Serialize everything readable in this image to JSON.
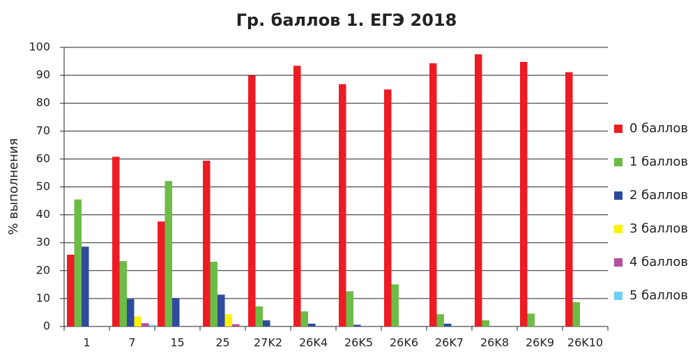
{
  "chart_data": {
    "type": "bar",
    "title": "Гр. баллов 1. ЕГЭ 2018",
    "y_label": "% выполнения",
    "categories": [
      "1",
      "7",
      "15",
      "25",
      "27K2",
      "26K4",
      "26K5",
      "26K6",
      "26K7",
      "26K8",
      "26K9",
      "26K10"
    ],
    "series": [
      {
        "name": "0 баллов",
        "color": "#ed1c24",
        "values": [
          25.7,
          60.8,
          37.6,
          59.4,
          89.9,
          93.4,
          86.8,
          84.9,
          94.3,
          97.5,
          94.8,
          91.1
        ]
      },
      {
        "name": "1 баллов",
        "color": "#6cbd45",
        "values": [
          45.5,
          23.4,
          52.1,
          23.2,
          7.2,
          5.4,
          12.6,
          15.1,
          4.4,
          2.2,
          4.6,
          8.7
        ]
      },
      {
        "name": "2 баллов",
        "color": "#2e4b9d",
        "values": [
          28.6,
          9.8,
          10.2,
          11.4,
          2.2,
          1.0,
          0.6,
          0,
          1.0,
          0,
          0,
          0
        ]
      },
      {
        "name": "3 баллов",
        "color": "#fff200",
        "values": [
          0,
          3.6,
          0,
          4.4,
          0,
          0,
          0,
          0,
          0,
          0,
          0,
          0
        ]
      },
      {
        "name": "4 баллов",
        "color": "#b54f9f",
        "values": [
          0,
          1.2,
          0,
          0.8,
          0,
          0,
          0,
          0,
          0,
          0,
          0,
          0
        ]
      },
      {
        "name": "5 баллов",
        "color": "#6dcff6",
        "values": [
          0,
          0.6,
          0,
          0,
          0,
          0,
          0,
          0,
          0,
          0,
          0,
          0
        ]
      }
    ],
    "ylim": [
      0,
      100
    ],
    "yticks": [
      0,
      10,
      20,
      30,
      40,
      50,
      60,
      70,
      80,
      90,
      100
    ],
    "grid": true,
    "legend": "right"
  }
}
